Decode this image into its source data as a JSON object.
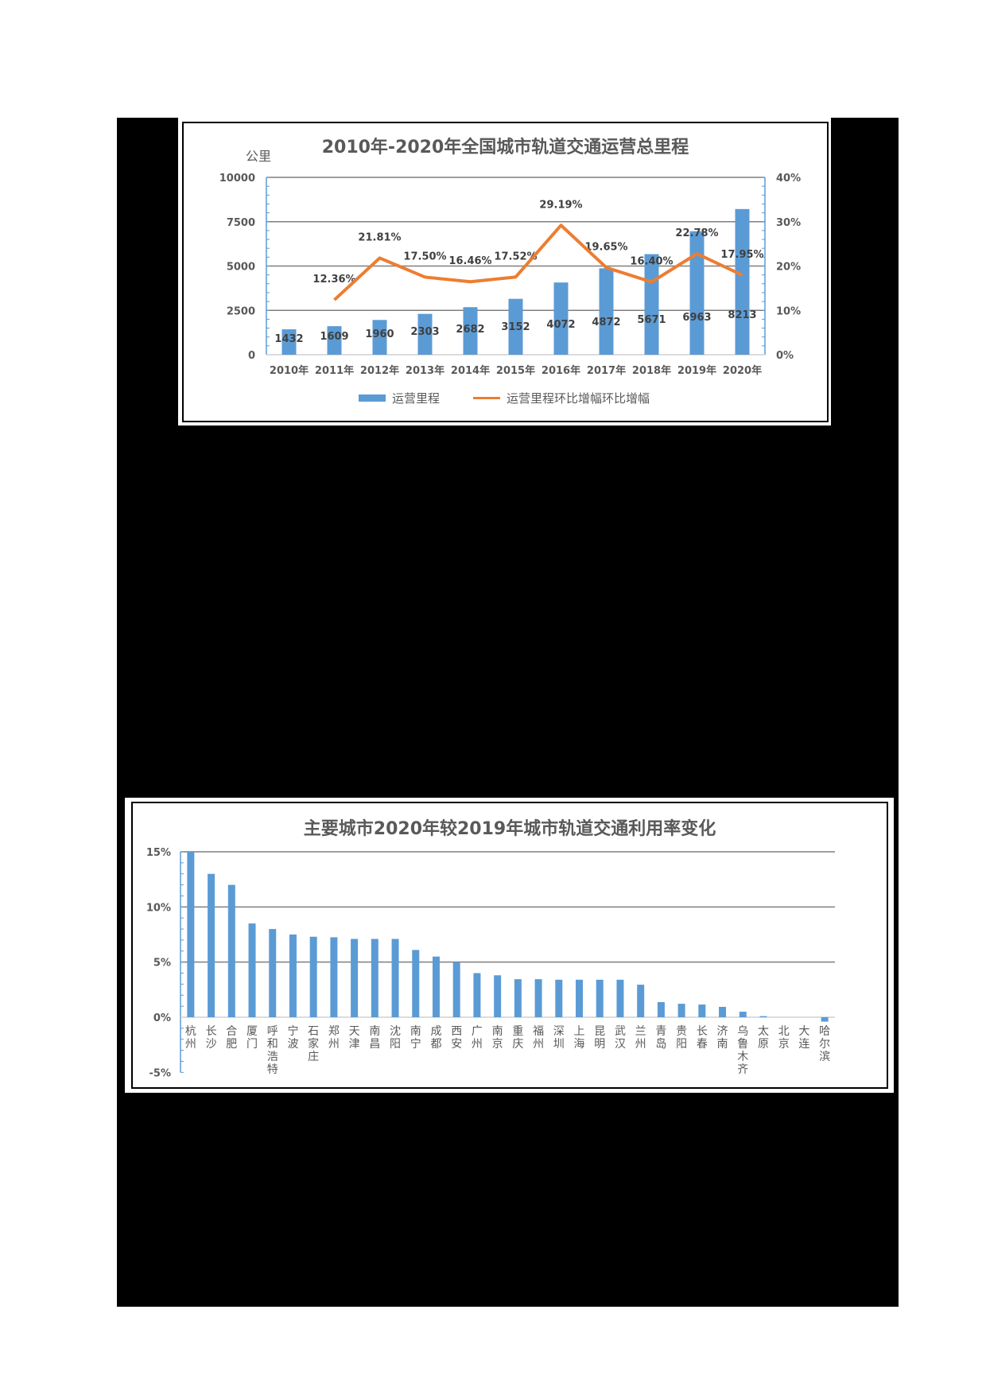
{
  "chart_data": [
    {
      "type": "bar+line",
      "title": "2010年-2020年全国城市轨道交通运营总里程",
      "ylabel": "公里",
      "y2label": "",
      "categories": [
        "2010年",
        "2011年",
        "2012年",
        "2013年",
        "2014年",
        "2015年",
        "2016年",
        "2017年",
        "2018年",
        "2019年",
        "2020年"
      ],
      "ylim": [
        0,
        10000
      ],
      "y_ticks": [
        "0",
        "2500",
        "5000",
        "7500",
        "10000"
      ],
      "y2lim": [
        0,
        0.4
      ],
      "y2_ticks": [
        "0%",
        "10%",
        "20%",
        "30%",
        "40%"
      ],
      "grid": true,
      "legend_position": "bottom",
      "series": [
        {
          "name": "运营里程",
          "type": "bar",
          "axis": "left",
          "color": "#5B9BD5",
          "values": [
            1432,
            1609,
            1960,
            2303,
            2682,
            3152,
            4072,
            4872,
            5671,
            6963,
            8213
          ],
          "labels": [
            "1432",
            "1609",
            "1960",
            "2303",
            "2682",
            "3152",
            "4072",
            "4872",
            "5671",
            "6963",
            "8213"
          ]
        },
        {
          "name": "运营里程环比增幅环比增幅",
          "type": "line",
          "axis": "right",
          "color": "#ED7D31",
          "values": [
            null,
            12.36,
            21.81,
            17.5,
            16.46,
            17.52,
            29.19,
            19.65,
            16.4,
            22.78,
            17.95
          ],
          "labels": [
            "",
            "12.36%",
            "21.81%",
            "17.50%",
            "16.46%",
            "17.52%",
            "29.19%",
            "19.65%",
            "16.40%",
            "22.78%",
            "17.95%"
          ]
        }
      ]
    },
    {
      "type": "bar",
      "title": "主要城市2020年较2019年城市轨道交通利用率变化",
      "xlabel": "",
      "ylabel": "",
      "ylim": [
        -5,
        15
      ],
      "y_ticks": [
        "-5%",
        "0%",
        "5%",
        "10%",
        "15%"
      ],
      "grid": true,
      "color": "#5B9BD5",
      "categories": [
        "杭州",
        "长沙",
        "合肥",
        "厦门",
        "呼和浩特",
        "宁波",
        "石家庄",
        "郑州",
        "天津",
        "南昌",
        "沈阳",
        "南宁",
        "成都",
        "西安",
        "广州",
        "南京",
        "重庆",
        "福州",
        "深圳",
        "上海",
        "昆明",
        "武汉",
        "兰州",
        "青岛",
        "贵阳",
        "长春",
        "济南",
        "乌鲁木齐",
        "太原",
        "北京",
        "大连",
        "哈尔滨"
      ],
      "values": [
        15.0,
        13.0,
        12.0,
        8.5,
        8.0,
        7.5,
        7.3,
        7.25,
        7.1,
        7.1,
        7.1,
        6.1,
        5.5,
        5.0,
        4.0,
        3.8,
        3.45,
        3.45,
        3.4,
        3.4,
        3.4,
        3.4,
        2.95,
        1.37,
        1.22,
        1.15,
        0.94,
        0.5,
        0.1,
        0.0,
        0.0,
        -0.4
      ]
    }
  ]
}
